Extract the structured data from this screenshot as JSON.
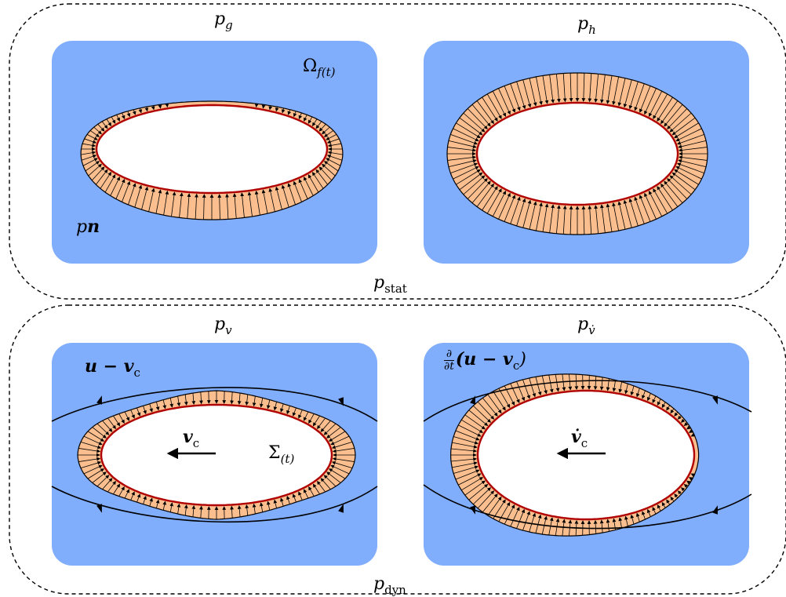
{
  "groups": {
    "stat": {
      "label_main": "p",
      "label_sub": "stat"
    },
    "dyn": {
      "label_main": "p",
      "label_sub": "dyn"
    }
  },
  "panels": {
    "pg": {
      "label_main": "p",
      "label_sub": "g",
      "omega_main": "Ω",
      "omega_sub": "f(t)",
      "pn_main": "p",
      "pn_vec": "n"
    },
    "ph": {
      "label_main": "p",
      "label_sub": "h"
    },
    "pv": {
      "label_main": "p",
      "label_sub": "v",
      "flow_label": "u − v",
      "flow_sub": "c",
      "vel_main": "v",
      "vel_sub": "c",
      "sigma_main": "Σ",
      "sigma_sub": "(t)"
    },
    "pvdot": {
      "label_main": "p",
      "label_sub": "v̇",
      "deriv_num": "∂",
      "deriv_den": "∂t",
      "deriv_body": "(u − v",
      "deriv_sub": "c",
      "deriv_close": ")",
      "vel_main": "v̇",
      "vel_sub": "c"
    }
  },
  "colors": {
    "fluid": "#80adfc",
    "pressure_fill": "#fbbf8f",
    "interface": "#b00000",
    "ink": "#000000",
    "bubble": "#ffffff"
  }
}
